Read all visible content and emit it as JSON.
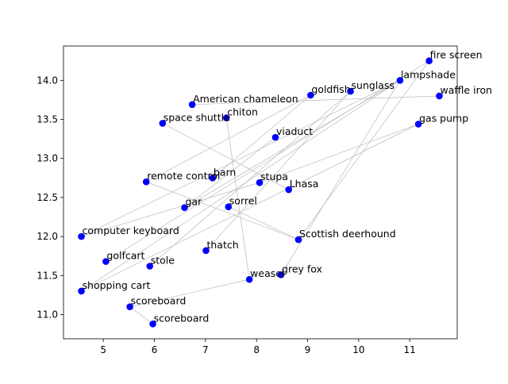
{
  "chart_data": {
    "type": "scatter",
    "title": "",
    "xlabel": "",
    "ylabel": "",
    "xlim": [
      4.22,
      11.93
    ],
    "ylim": [
      10.69,
      14.44
    ],
    "xticks": [
      5,
      6,
      7,
      8,
      9,
      10,
      11
    ],
    "yticks": [
      11.0,
      11.5,
      12.0,
      12.5,
      13.0,
      13.5,
      14.0
    ],
    "grid": false,
    "legend": "none",
    "point_color": "#0000ff",
    "edge_color": "#b0b0b0",
    "points": [
      {
        "label": "fire screen",
        "x": 11.38,
        "y": 14.25
      },
      {
        "label": "lampshade",
        "x": 10.81,
        "y": 14.0
      },
      {
        "label": "waffle iron",
        "x": 11.58,
        "y": 13.8
      },
      {
        "label": "sunglass",
        "x": 9.84,
        "y": 13.86
      },
      {
        "label": "goldfish",
        "x": 9.06,
        "y": 13.81
      },
      {
        "label": "American chameleon",
        "x": 6.74,
        "y": 13.69
      },
      {
        "label": "chiton",
        "x": 7.41,
        "y": 13.52
      },
      {
        "label": "space shuttle",
        "x": 6.16,
        "y": 13.45
      },
      {
        "label": "gas pump",
        "x": 11.17,
        "y": 13.44
      },
      {
        "label": "viaduct",
        "x": 8.37,
        "y": 13.27
      },
      {
        "label": "barn",
        "x": 7.14,
        "y": 12.75
      },
      {
        "label": "remote control",
        "x": 5.84,
        "y": 12.7
      },
      {
        "label": "stupa",
        "x": 8.06,
        "y": 12.69
      },
      {
        "label": "Lhasa",
        "x": 8.63,
        "y": 12.6
      },
      {
        "label": "gar",
        "x": 6.59,
        "y": 12.37
      },
      {
        "label": "sorrel",
        "x": 7.45,
        "y": 12.38
      },
      {
        "label": "computer keyboard",
        "x": 4.57,
        "y": 12.0
      },
      {
        "label": "Scottish deerhound",
        "x": 8.82,
        "y": 11.96
      },
      {
        "label": "thatch",
        "x": 7.01,
        "y": 11.82
      },
      {
        "label": "golfcart",
        "x": 5.05,
        "y": 11.68
      },
      {
        "label": "stole",
        "x": 5.91,
        "y": 11.62
      },
      {
        "label": "grey fox",
        "x": 8.48,
        "y": 11.51
      },
      {
        "label": "weasel",
        "x": 7.86,
        "y": 11.45
      },
      {
        "label": "shopping cart",
        "x": 4.57,
        "y": 11.3
      },
      {
        "label": "scoreboard",
        "x": 5.52,
        "y": 11.1
      },
      {
        "label": "scoreboard",
        "x": 5.97,
        "y": 10.88
      }
    ],
    "edges": [
      [
        0,
        17
      ],
      [
        0,
        19
      ],
      [
        1,
        16
      ],
      [
        1,
        21
      ],
      [
        1,
        23
      ],
      [
        1,
        14
      ],
      [
        2,
        5
      ],
      [
        3,
        18
      ],
      [
        3,
        20
      ],
      [
        4,
        10
      ],
      [
        4,
        11
      ],
      [
        6,
        22
      ],
      [
        7,
        13
      ],
      [
        8,
        12
      ],
      [
        8,
        23
      ],
      [
        9,
        14
      ],
      [
        11,
        17
      ],
      [
        12,
        16
      ],
      [
        15,
        17
      ],
      [
        22,
        24
      ],
      [
        24,
        25
      ]
    ]
  }
}
